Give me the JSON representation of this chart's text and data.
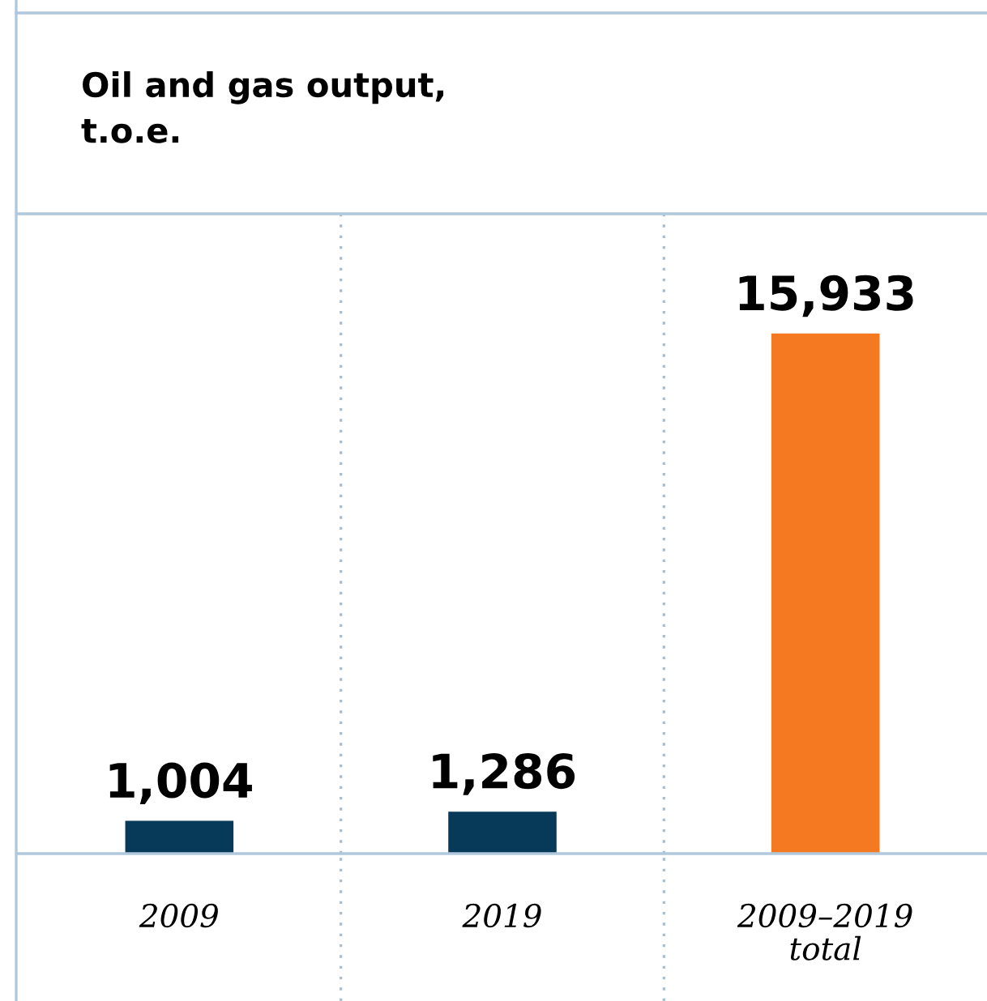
{
  "chart_data": {
    "type": "bar",
    "title": "Oil and gas output,\nt.o.e.",
    "categories": [
      "2009",
      "2019",
      "2009–2019\ntotal"
    ],
    "values": [
      1004,
      1286,
      15933
    ],
    "colors": [
      "#073a58",
      "#073a58",
      "#f47920"
    ],
    "value_labels": [
      "1,004",
      "1,286",
      "15,933"
    ],
    "grid": "x",
    "legend": false,
    "tick_labels": "x"
  }
}
